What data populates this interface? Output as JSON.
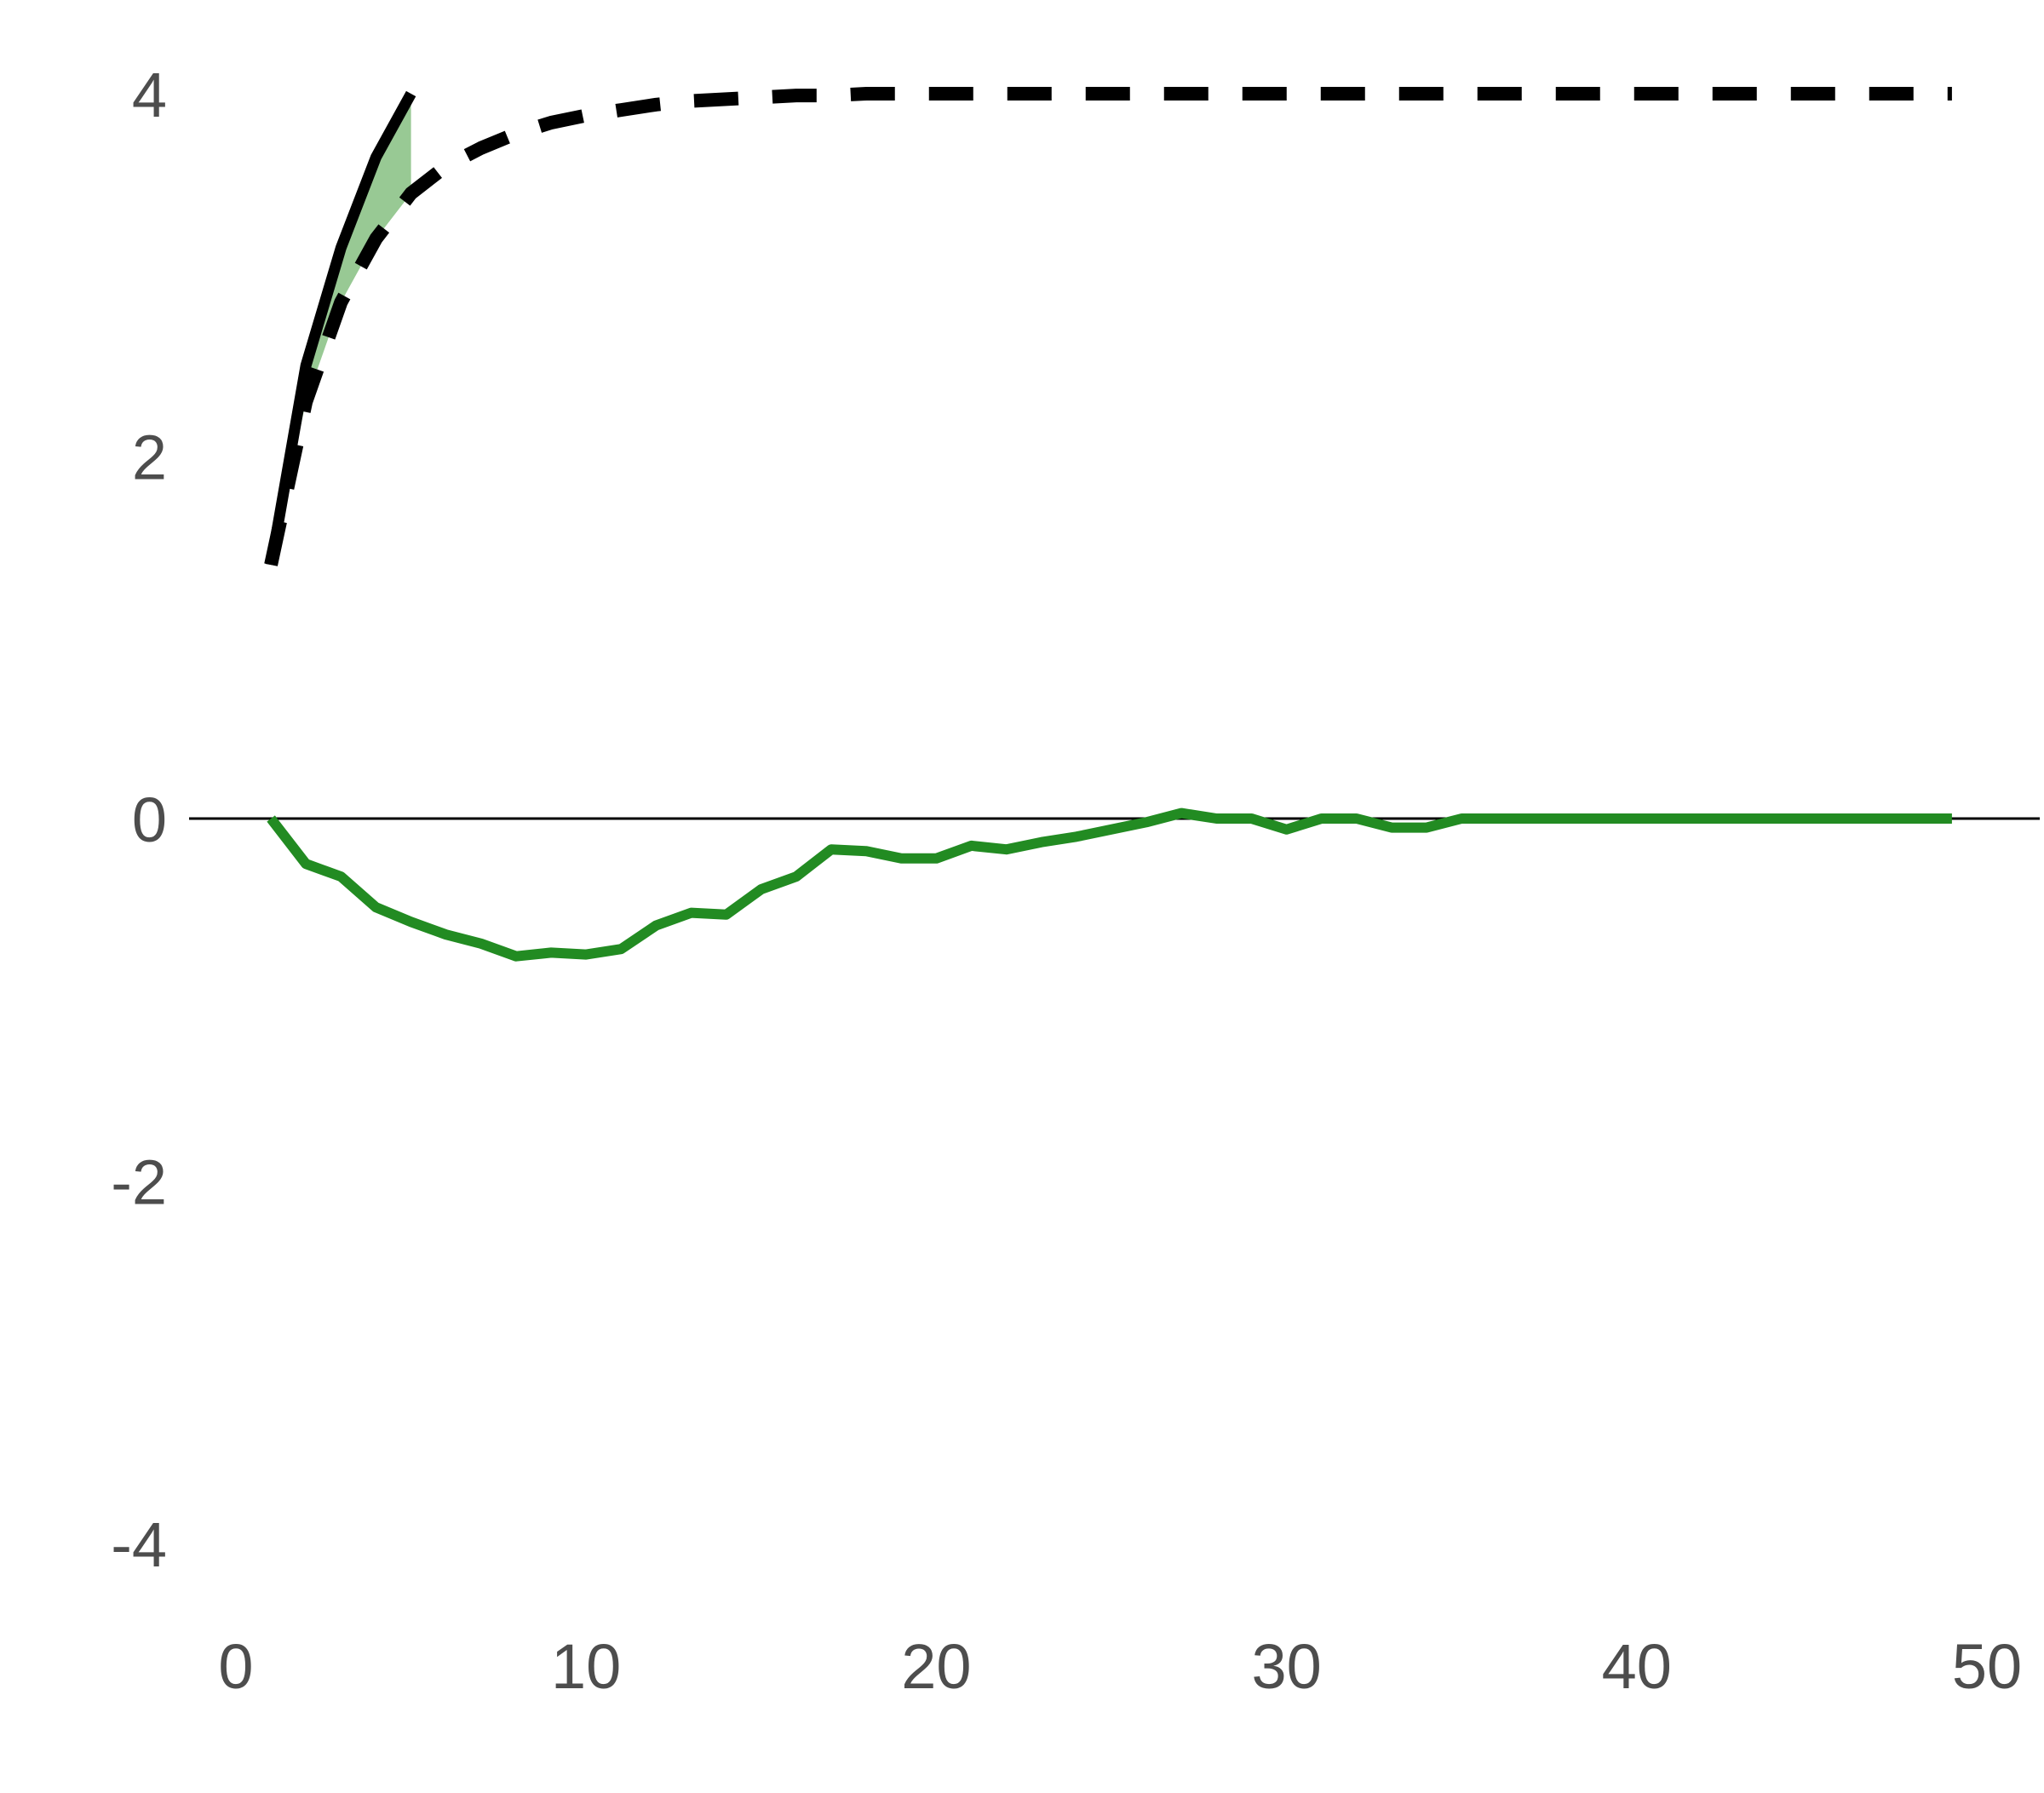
{
  "chart_data": {
    "type": "line",
    "title": "",
    "xlabel": "",
    "ylabel": "",
    "xlim": [
      0,
      51
    ],
    "ylim": [
      -4.4,
      4.4
    ],
    "x_ticks": [
      0,
      10,
      20,
      30,
      40,
      50
    ],
    "y_ticks": [
      -4,
      -2,
      0,
      2,
      4
    ],
    "grid": false,
    "legend": "none",
    "zero_line": true,
    "colors": {
      "solid_line": "#000000",
      "dashed_line": "#000000",
      "difference_line": "#228b22",
      "fill": "#98c994",
      "zero_line": "#000000",
      "tick_text": "#4d4d4d"
    },
    "series": [
      {
        "style": "solid",
        "x": [
          1,
          2,
          3,
          4,
          5,
          6,
          7,
          8,
          9,
          10,
          11,
          12,
          13,
          14,
          15,
          16,
          17,
          18,
          19,
          20,
          21,
          22,
          23,
          24,
          25,
          26,
          27,
          28,
          29,
          30,
          31,
          32,
          33,
          34,
          35,
          36,
          37,
          38,
          39,
          40,
          41,
          42,
          43,
          44,
          45,
          46,
          47,
          48,
          49
        ],
        "values": [
          1.4,
          2.5,
          3.15,
          3.65,
          4.0,
          4.0,
          4.0,
          4.0,
          4.0,
          4.0,
          4.0,
          4.0,
          4.0,
          4.0,
          4.0,
          4.0,
          4.0,
          4.0,
          4.0,
          4.0,
          4.0,
          4.0,
          4.0,
          4.0,
          4.0,
          4.0,
          4.0,
          4.0,
          4.0,
          4.0,
          4.0,
          4.0,
          4.0,
          4.0,
          4.0,
          4.0,
          4.0,
          4.0,
          4.0,
          4.0,
          4.0,
          4.0,
          4.0,
          4.0,
          4.0,
          4.0,
          4.0,
          4.0,
          4.0
        ],
        "visible_x": [
          1,
          5
        ]
      },
      {
        "style": "dashed",
        "x": [
          1,
          2,
          3,
          4,
          5,
          6,
          7,
          8,
          9,
          10,
          11,
          12,
          13,
          14,
          15,
          16,
          17,
          18,
          19,
          20,
          21,
          22,
          23,
          24,
          25,
          26,
          27,
          28,
          29,
          30,
          31,
          32,
          33,
          34,
          35,
          36,
          37,
          38,
          39,
          40,
          41,
          42,
          43,
          44,
          45,
          46,
          47,
          48,
          49
        ],
        "values": [
          1.4,
          2.3,
          2.85,
          3.2,
          3.45,
          3.6,
          3.7,
          3.78,
          3.84,
          3.88,
          3.91,
          3.94,
          3.96,
          3.97,
          3.98,
          3.99,
          3.99,
          4.0,
          4.0,
          4.0,
          4.0,
          4.0,
          4.0,
          4.0,
          4.0,
          4.0,
          4.0,
          4.0,
          4.0,
          4.0,
          4.0,
          4.0,
          4.0,
          4.0,
          4.0,
          4.0,
          4.0,
          4.0,
          4.0,
          4.0,
          4.0,
          4.0,
          4.0,
          4.0,
          4.0,
          4.0,
          4.0,
          4.0,
          4.0
        ]
      },
      {
        "style": "solid-green",
        "x": [
          1,
          2,
          3,
          4,
          5,
          6,
          7,
          8,
          9,
          10,
          11,
          12,
          13,
          14,
          15,
          16,
          17,
          18,
          19,
          20,
          21,
          22,
          23,
          24,
          25,
          26,
          27,
          28,
          29,
          30,
          31,
          32,
          33,
          34,
          35,
          36,
          37,
          38,
          39,
          40,
          41,
          42,
          43,
          44,
          45,
          46,
          47,
          48,
          49
        ],
        "values": [
          0.0,
          -0.25,
          -0.32,
          -0.49,
          -0.57,
          -0.64,
          -0.69,
          -0.76,
          -0.74,
          -0.75,
          -0.72,
          -0.59,
          -0.52,
          -0.53,
          -0.39,
          -0.32,
          -0.17,
          -0.18,
          -0.22,
          -0.22,
          -0.15,
          -0.17,
          -0.13,
          -0.1,
          -0.06,
          -0.02,
          0.03,
          0.0,
          0.0,
          -0.06,
          0.0,
          0.0,
          -0.05,
          -0.05,
          0.0,
          0.0,
          0.0,
          0.0,
          0.0,
          0.0,
          0.0,
          0.0,
          0.0,
          0.0,
          0.0,
          0.0,
          0.0,
          0.0,
          0.0
        ]
      }
    ],
    "shaded_region": {
      "x": [
        1,
        2,
        3,
        4,
        5
      ],
      "upper": [
        1.4,
        2.5,
        3.15,
        3.65,
        4.0
      ],
      "lower": [
        1.4,
        2.3,
        2.85,
        3.2,
        3.45
      ]
    }
  }
}
